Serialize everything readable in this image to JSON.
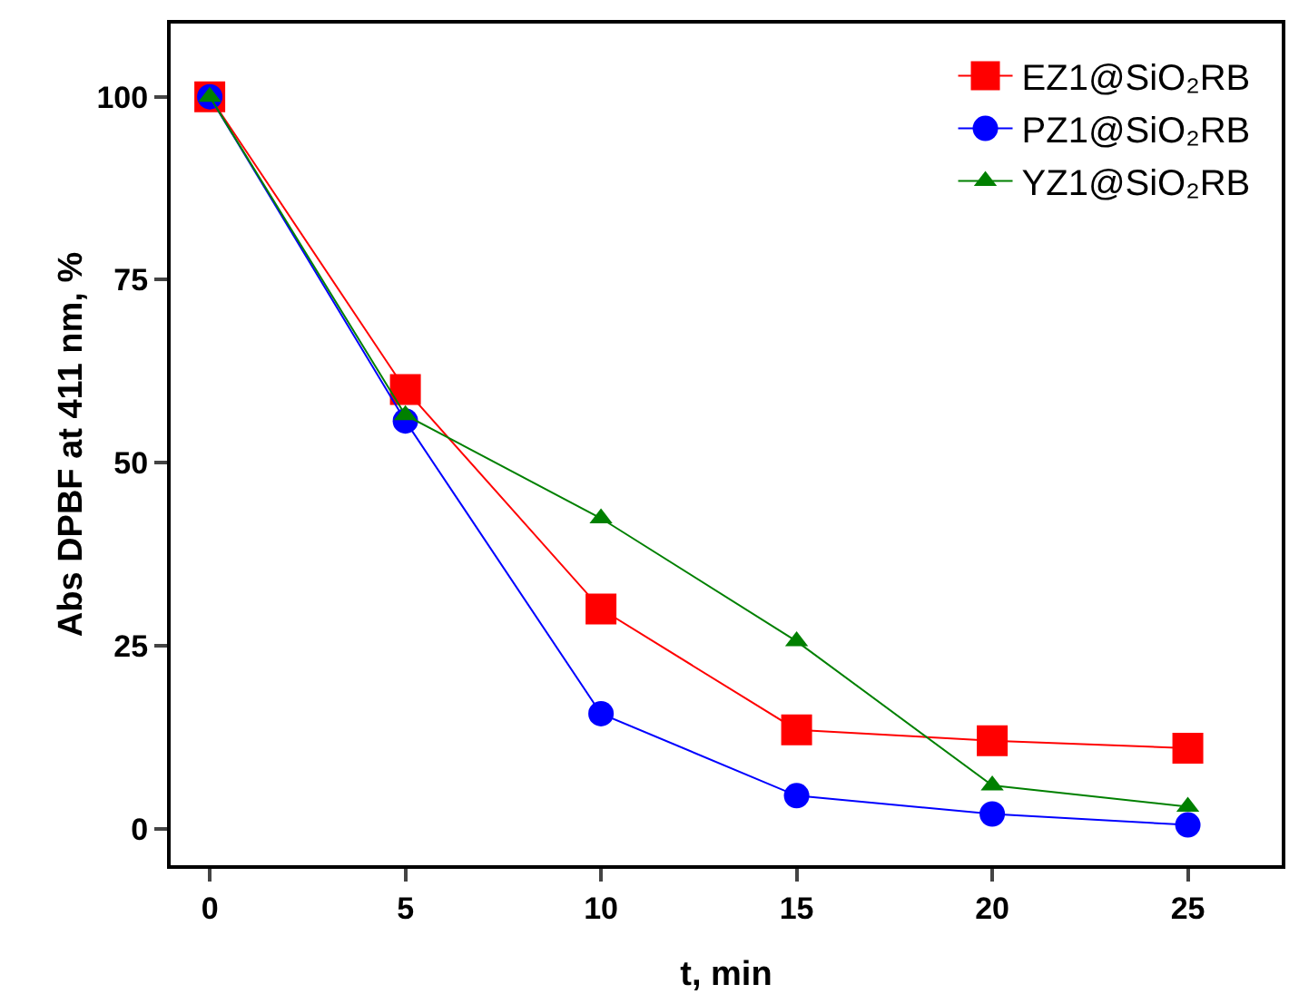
{
  "chart_data": {
    "type": "line",
    "xlabel": "t, min",
    "ylabel": "Abs DPBF at 411 nm, %",
    "x": [
      0,
      5,
      10,
      15,
      20,
      25
    ],
    "series": [
      {
        "name": "EZ1@SiO₂RB",
        "color": "#ff0000",
        "marker": "square",
        "values": [
          100,
          60,
          30,
          13.5,
          12,
          11
        ]
      },
      {
        "name": "PZ1@SiO₂RB",
        "color": "#0000ff",
        "marker": "circle",
        "values": [
          100,
          55.7,
          15.7,
          4.5,
          2,
          0.5
        ]
      },
      {
        "name": "YZ1@SiO₂RB",
        "color": "#008000",
        "marker": "triangle",
        "values": [
          100,
          56.5,
          42.4,
          25.6,
          5.9,
          3
        ]
      }
    ],
    "xlim": [
      -1,
      27.4
    ],
    "xticks": [
      0,
      5,
      10,
      15,
      20,
      25
    ],
    "ylim": [
      -5,
      110
    ],
    "yticks": [
      0,
      25,
      50,
      75,
      100
    ],
    "grid": false,
    "legend": "top right",
    "line_style": "solid"
  }
}
